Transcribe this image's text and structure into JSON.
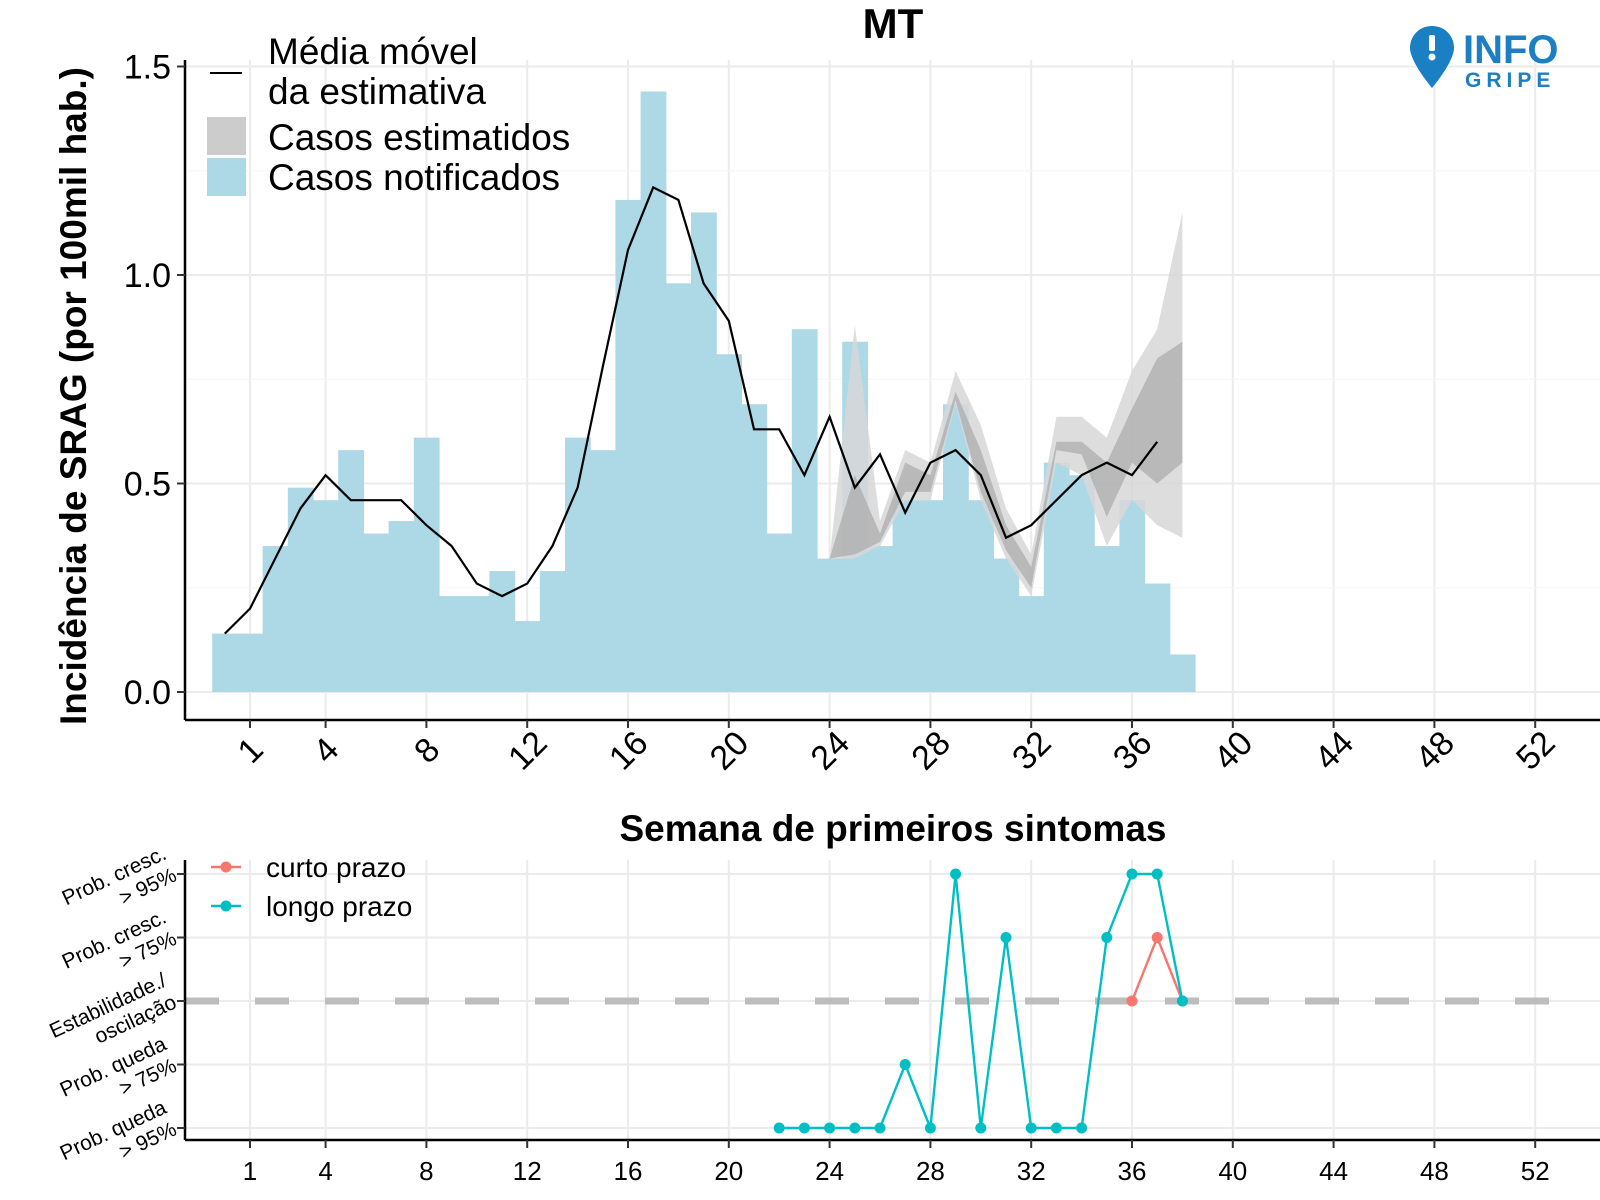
{
  "logo": {
    "line1": "INFO",
    "line2": "GRIPE",
    "color": "#1b7fc4"
  },
  "colors": {
    "bars": "#add8e6",
    "band_outer": "#d7d7d7",
    "band_inner": "#a9a9a9",
    "line": "#000000",
    "short_term": "#f8766d",
    "long_term": "#00bfc4",
    "grid": "#ebebeb",
    "stable_line": "#bdbdbd"
  },
  "chart_data": [
    {
      "type": "bar",
      "title": "MT",
      "xlabel": "Semana de primeiros sintomas",
      "ylabel": "Incidência de SRAG (por 100mil hab.)",
      "xlim": [
        -0.5,
        53.5
      ],
      "ylim": [
        -0.07,
        1.5
      ],
      "x_ticks": [
        1,
        4,
        8,
        12,
        16,
        20,
        24,
        28,
        32,
        36,
        40,
        44,
        48,
        52
      ],
      "y_ticks": [
        0.0,
        0.5,
        1.0,
        1.5
      ],
      "y_tick_labels": [
        "0.0",
        "0.5",
        "1.0",
        "1.5"
      ],
      "grid": true,
      "legend": {
        "position": "top-left",
        "items": [
          "Média móvel\nda estimativa",
          "Casos estimatidos",
          "Casos notificados"
        ]
      },
      "series": [
        {
          "name": "Casos notificados",
          "type": "bar",
          "x": [
            0,
            1,
            2,
            3,
            4,
            5,
            6,
            7,
            8,
            9,
            10,
            11,
            12,
            13,
            14,
            15,
            16,
            17,
            18,
            19,
            20,
            21,
            22,
            23,
            24,
            25,
            26,
            27,
            28,
            29,
            30,
            31,
            32,
            33,
            34,
            35,
            36,
            37,
            38
          ],
          "values": [
            0.14,
            0.14,
            0.35,
            0.49,
            0.46,
            0.58,
            0.38,
            0.41,
            0.61,
            0.23,
            0.23,
            0.29,
            0.17,
            0.29,
            0.61,
            0.58,
            1.18,
            1.44,
            0.98,
            1.15,
            0.81,
            0.69,
            0.38,
            0.87,
            0.32,
            0.84,
            0.35,
            0.46,
            0.46,
            0.69,
            0.46,
            0.32,
            0.23,
            0.55,
            0.52,
            0.35,
            0.46,
            0.26,
            0.09
          ]
        },
        {
          "name": "Casos estimatidos",
          "type": "area",
          "x": [
            24,
            25,
            26,
            27,
            28,
            29,
            30,
            31,
            32,
            33,
            34,
            35,
            36,
            37,
            38
          ],
          "low_outer": [
            0.32,
            0.32,
            0.35,
            0.46,
            0.46,
            0.69,
            0.46,
            0.32,
            0.23,
            0.55,
            0.52,
            0.35,
            0.46,
            0.4,
            0.37
          ],
          "low_inner": [
            0.32,
            0.33,
            0.36,
            0.48,
            0.48,
            0.7,
            0.48,
            0.34,
            0.25,
            0.58,
            0.57,
            0.42,
            0.55,
            0.5,
            0.55
          ],
          "high_inner": [
            0.32,
            0.52,
            0.38,
            0.55,
            0.52,
            0.72,
            0.58,
            0.4,
            0.3,
            0.6,
            0.6,
            0.55,
            0.68,
            0.8,
            0.84
          ],
          "high_outer": [
            0.32,
            0.88,
            0.41,
            0.58,
            0.55,
            0.77,
            0.64,
            0.44,
            0.33,
            0.66,
            0.66,
            0.61,
            0.77,
            0.87,
            1.15
          ]
        },
        {
          "name": "Média móvel da estimativa",
          "type": "line",
          "x": [
            0,
            1,
            2,
            3,
            4,
            5,
            6,
            7,
            8,
            9,
            10,
            11,
            12,
            13,
            14,
            15,
            16,
            17,
            18,
            19,
            20,
            21,
            22,
            23,
            24,
            25,
            26,
            27,
            28,
            29,
            30,
            31,
            32,
            33,
            34,
            35,
            36,
            37
          ],
          "values": [
            0.14,
            0.2,
            0.32,
            0.44,
            0.52,
            0.46,
            0.46,
            0.46,
            0.4,
            0.35,
            0.26,
            0.23,
            0.26,
            0.35,
            0.49,
            0.78,
            1.06,
            1.21,
            1.18,
            0.98,
            0.89,
            0.63,
            0.63,
            0.52,
            0.66,
            0.49,
            0.57,
            0.43,
            0.55,
            0.58,
            0.52,
            0.37,
            0.4,
            0.46,
            0.52,
            0.55,
            0.52,
            0.6
          ]
        }
      ]
    },
    {
      "type": "line",
      "xlabel": "",
      "ylabel": "",
      "x_ticks": [
        1,
        4,
        8,
        12,
        16,
        20,
        24,
        28,
        32,
        36,
        40,
        44,
        48,
        52
      ],
      "y_levels": [
        "Prob. queda\n> 95%",
        "Prob. queda\n> 75%",
        "Estabilidade./\noscilação",
        "Prob. cresc.\n> 75%",
        "Prob. cresc.\n> 95%"
      ],
      "stable_level": 0,
      "legend": {
        "position": "top-left",
        "items": [
          "curto prazo",
          "longo prazo"
        ]
      },
      "series": [
        {
          "name": "curto prazo",
          "x": [
            36,
            37,
            38
          ],
          "values": [
            0,
            1,
            0
          ]
        },
        {
          "name": "longo prazo",
          "x": [
            22,
            23,
            24,
            25,
            26,
            27,
            28,
            29,
            30,
            31,
            32,
            33,
            34,
            35,
            36,
            37,
            38
          ],
          "values": [
            -2,
            -2,
            -2,
            -2,
            -2,
            -1,
            -2,
            2,
            -2,
            1,
            -2,
            -2,
            -2,
            1,
            2,
            2,
            0
          ]
        }
      ]
    }
  ]
}
